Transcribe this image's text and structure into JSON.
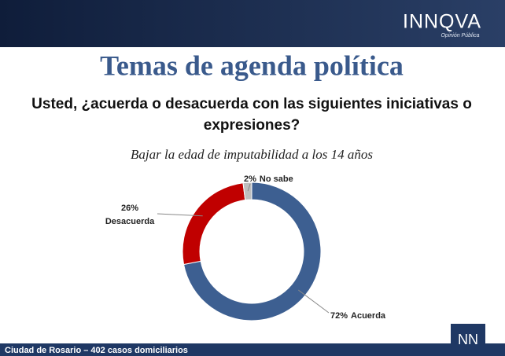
{
  "header": {
    "brand": "INNQVA",
    "tagline": "Opinión Pública"
  },
  "title": "Temas de agenda política",
  "question": [
    "Usted, ¿acuerda o desacuerda con las siguientes iniciativas o",
    "expresiones?"
  ],
  "chart_data": {
    "type": "donut",
    "title": "Bajar la edad de imputabilidad a los 14 años",
    "categories": [
      "Acuerda",
      "Desacuerda",
      "No sabe"
    ],
    "values": [
      72,
      26,
      2
    ],
    "value_labels": [
      "72%",
      "26%",
      "2%"
    ],
    "colors": [
      "#3d5f91",
      "#c00000",
      "#bfbfbf"
    ]
  },
  "footer": {
    "text": "Ciudad de Rosario – 402 casos domiciliarios",
    "logo": "NN"
  }
}
